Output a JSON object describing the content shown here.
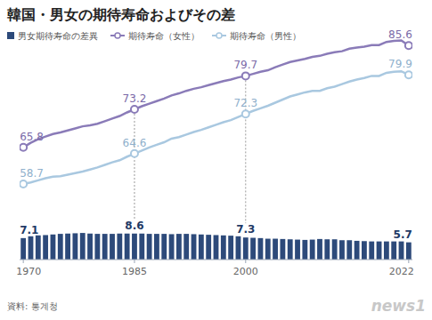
{
  "chart_data": {
    "type": "line",
    "title": "韓国・男女の期待寿命およびその差",
    "source": "資料: 통계청",
    "logo": "news1",
    "x": [
      1970,
      1971,
      1972,
      1973,
      1974,
      1975,
      1976,
      1977,
      1978,
      1979,
      1980,
      1981,
      1982,
      1983,
      1984,
      1985,
      1986,
      1987,
      1988,
      1989,
      1990,
      1991,
      1992,
      1993,
      1994,
      1995,
      1996,
      1997,
      1998,
      1999,
      2000,
      2001,
      2002,
      2003,
      2004,
      2005,
      2006,
      2007,
      2008,
      2009,
      2010,
      2011,
      2012,
      2013,
      2014,
      2015,
      2016,
      2017,
      2018,
      2019,
      2020,
      2021,
      2022
    ],
    "xlim": [
      1969.5,
      2022.5
    ],
    "xticks": [
      1970,
      1985,
      2000,
      2022
    ],
    "ylim": [
      44,
      91
    ],
    "y2lim": [
      0,
      80
    ],
    "tick_labels": "x",
    "grid": false,
    "legend": "top-left",
    "data_labels": true,
    "series": [
      {
        "name": "男女期待寿命の差異",
        "type": "bar",
        "axis": "y2",
        "color": "#2d4a7a",
        "values": [
          7.1,
          7.7,
          8.0,
          8.1,
          8.3,
          8.5,
          8.6,
          8.7,
          8.8,
          8.6,
          8.5,
          8.5,
          8.5,
          8.6,
          8.6,
          8.6,
          8.6,
          8.5,
          8.5,
          8.5,
          8.4,
          8.5,
          8.5,
          8.4,
          8.3,
          8.2,
          8.1,
          8.0,
          7.9,
          7.7,
          7.3,
          7.2,
          7.1,
          6.9,
          6.9,
          6.8,
          6.7,
          6.6,
          6.5,
          6.6,
          6.8,
          6.7,
          6.7,
          6.4,
          6.4,
          6.2,
          6.1,
          6.0,
          6.0,
          6.0,
          6.0,
          6.0,
          5.7
        ],
        "value_labels": [
          "7.1",
          null,
          null,
          null,
          null,
          null,
          null,
          null,
          null,
          null,
          null,
          null,
          null,
          null,
          null,
          "8.6",
          null,
          null,
          null,
          null,
          null,
          null,
          null,
          null,
          null,
          null,
          null,
          null,
          null,
          null,
          "7.3",
          null,
          null,
          null,
          null,
          null,
          null,
          null,
          null,
          null,
          null,
          null,
          null,
          null,
          null,
          null,
          null,
          null,
          null,
          null,
          null,
          null,
          "5.7"
        ]
      },
      {
        "name": "期待寿命（女性）",
        "type": "line",
        "color": "#8a7bb8",
        "marker": "circle",
        "line_style": "solid",
        "values": [
          65.8,
          66.7,
          67.4,
          67.9,
          68.4,
          68.7,
          69.1,
          69.5,
          69.9,
          70.1,
          70.4,
          70.9,
          71.4,
          71.9,
          72.6,
          73.2,
          73.8,
          74.3,
          74.8,
          75.3,
          75.9,
          76.3,
          76.8,
          77.2,
          77.5,
          77.9,
          78.3,
          78.7,
          79.0,
          79.4,
          79.7,
          80.1,
          80.5,
          80.8,
          81.4,
          81.9,
          82.4,
          82.7,
          83.0,
          83.4,
          83.6,
          84.0,
          84.3,
          84.5,
          85.0,
          85.2,
          85.4,
          85.7,
          85.7,
          86.3,
          86.5,
          86.6,
          85.6
        ],
        "value_labels": [
          "65.8",
          null,
          null,
          null,
          null,
          null,
          null,
          null,
          null,
          null,
          null,
          null,
          null,
          null,
          null,
          "73.2",
          null,
          null,
          null,
          null,
          null,
          null,
          null,
          null,
          null,
          null,
          null,
          null,
          null,
          null,
          "79.7",
          null,
          null,
          null,
          null,
          null,
          null,
          null,
          null,
          null,
          null,
          null,
          null,
          null,
          null,
          null,
          null,
          null,
          null,
          null,
          null,
          null,
          "85.6"
        ]
      },
      {
        "name": "期待寿命（男性）",
        "type": "line",
        "color": "#a9c8e0",
        "marker": "circle",
        "line_style": "solid",
        "values": [
          58.7,
          59.0,
          59.4,
          59.8,
          60.1,
          60.2,
          60.5,
          60.8,
          61.1,
          61.5,
          61.9,
          62.4,
          62.9,
          63.3,
          64.0,
          64.6,
          65.2,
          65.8,
          66.3,
          66.8,
          67.5,
          67.8,
          68.3,
          68.8,
          69.2,
          69.7,
          70.2,
          70.7,
          71.1,
          71.7,
          72.3,
          72.9,
          73.4,
          73.9,
          74.5,
          75.1,
          75.7,
          76.1,
          76.5,
          76.8,
          76.8,
          77.3,
          77.6,
          78.1,
          78.6,
          79.0,
          79.3,
          79.7,
          79.7,
          80.3,
          80.5,
          80.6,
          79.9
        ],
        "value_labels": [
          "58.7",
          null,
          null,
          null,
          null,
          null,
          null,
          null,
          null,
          null,
          null,
          null,
          null,
          null,
          null,
          "64.6",
          null,
          null,
          null,
          null,
          null,
          null,
          null,
          null,
          null,
          null,
          null,
          null,
          null,
          null,
          "72.3",
          null,
          null,
          null,
          null,
          null,
          null,
          null,
          null,
          null,
          null,
          null,
          null,
          null,
          null,
          null,
          null,
          null,
          null,
          null,
          null,
          null,
          "79.9"
        ]
      }
    ]
  }
}
